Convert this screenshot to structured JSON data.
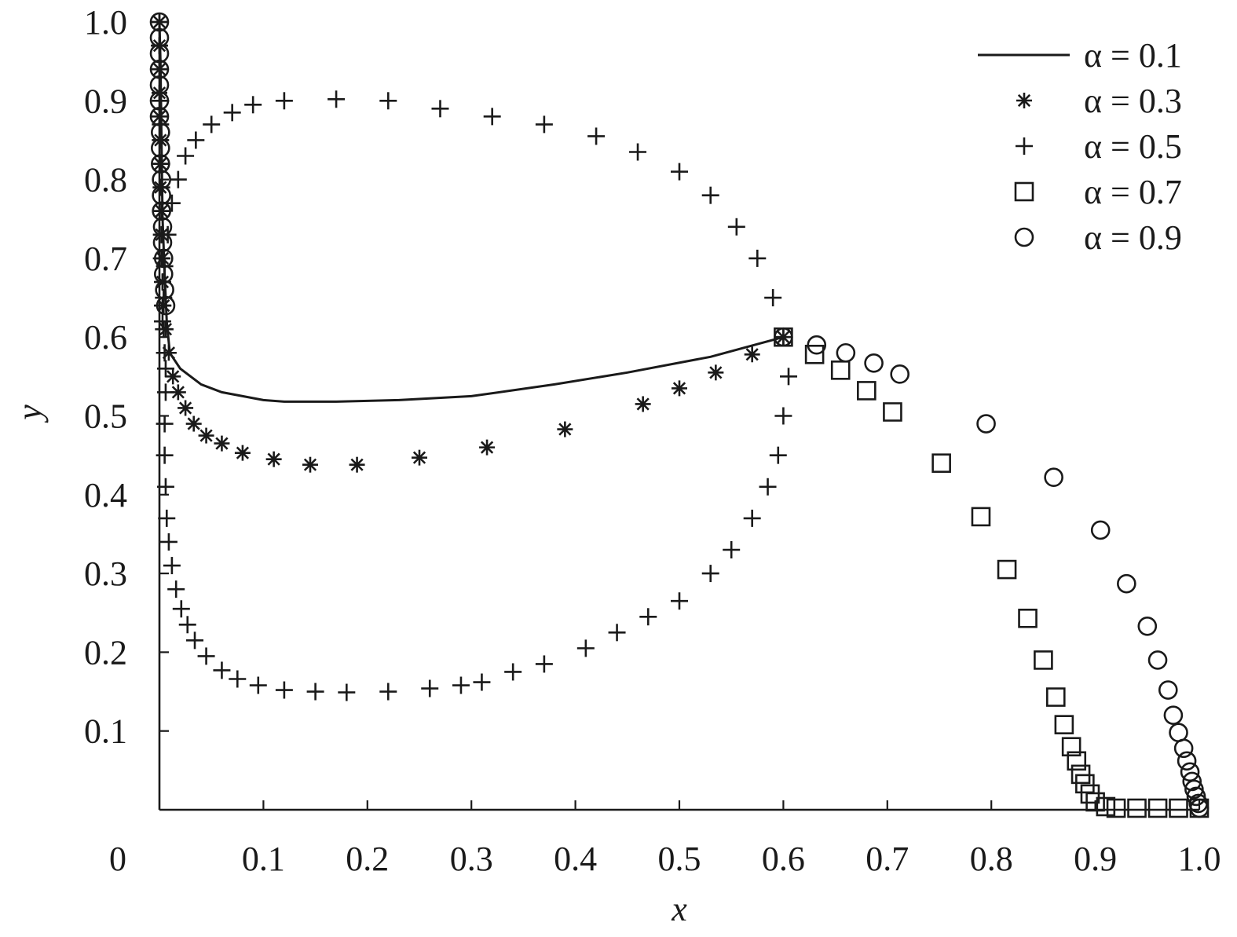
{
  "chart_data": {
    "type": "scatter",
    "title": "",
    "xlabel": "x",
    "ylabel": "y",
    "xlim": [
      0,
      1.0
    ],
    "ylim": [
      0,
      1.0
    ],
    "x_tick_labels": [
      "0",
      "0.1",
      "0.2",
      "0.3",
      "0.4",
      "0.5",
      "0.6",
      "0.7",
      "0.8",
      "0.9",
      "1.0"
    ],
    "y_tick_labels": [
      "0.1",
      "0.2",
      "0.3",
      "0.4",
      "0.5",
      "0.6",
      "0.7",
      "0.8",
      "0.9",
      "1.0"
    ],
    "grid": false,
    "legend_position": "top-right",
    "series": [
      {
        "name": "α = 0.1",
        "marker": "line",
        "points": [
          [
            0,
            1.0
          ],
          [
            0.001,
            0.95
          ],
          [
            0.002,
            0.85
          ],
          [
            0.003,
            0.75
          ],
          [
            0.005,
            0.68
          ],
          [
            0.007,
            0.62
          ],
          [
            0.01,
            0.58
          ],
          [
            0.02,
            0.56
          ],
          [
            0.04,
            0.54
          ],
          [
            0.06,
            0.53
          ],
          [
            0.08,
            0.525
          ],
          [
            0.1,
            0.52
          ],
          [
            0.12,
            0.518
          ],
          [
            0.17,
            0.518
          ],
          [
            0.23,
            0.52
          ],
          [
            0.3,
            0.525
          ],
          [
            0.38,
            0.54
          ],
          [
            0.45,
            0.555
          ],
          [
            0.53,
            0.575
          ],
          [
            0.6,
            0.6
          ]
        ]
      },
      {
        "name": "α = 0.3",
        "marker": "asterisk",
        "points": [
          [
            0,
            1.0
          ],
          [
            0,
            0.97
          ],
          [
            0,
            0.94
          ],
          [
            0,
            0.91
          ],
          [
            0,
            0.88
          ],
          [
            0.001,
            0.85
          ],
          [
            0.001,
            0.82
          ],
          [
            0.001,
            0.79
          ],
          [
            0.002,
            0.76
          ],
          [
            0.002,
            0.73
          ],
          [
            0.003,
            0.7
          ],
          [
            0.003,
            0.67
          ],
          [
            0.004,
            0.64
          ],
          [
            0.006,
            0.61
          ],
          [
            0.009,
            0.58
          ],
          [
            0.013,
            0.55
          ],
          [
            0.018,
            0.53
          ],
          [
            0.025,
            0.51
          ],
          [
            0.033,
            0.49
          ],
          [
            0.045,
            0.475
          ],
          [
            0.06,
            0.465
          ],
          [
            0.08,
            0.453
          ],
          [
            0.11,
            0.445
          ],
          [
            0.145,
            0.438
          ],
          [
            0.19,
            0.438
          ],
          [
            0.25,
            0.447
          ],
          [
            0.315,
            0.46
          ],
          [
            0.39,
            0.483
          ],
          [
            0.465,
            0.515
          ],
          [
            0.5,
            0.535
          ],
          [
            0.535,
            0.555
          ],
          [
            0.57,
            0.578
          ],
          [
            0.6,
            0.6
          ]
        ]
      },
      {
        "name": "α = 0.5",
        "marker": "plus",
        "points": [
          [
            0,
            1.0
          ],
          [
            0,
            0.97
          ],
          [
            0,
            0.94
          ],
          [
            0.001,
            0.9
          ],
          [
            0.001,
            0.87
          ],
          [
            0.001,
            0.85
          ],
          [
            0.002,
            0.82
          ],
          [
            0.002,
            0.79
          ],
          [
            0.002,
            0.76
          ],
          [
            0.002,
            0.73
          ],
          [
            0.002,
            0.7
          ],
          [
            0.003,
            0.67
          ],
          [
            0.003,
            0.64
          ],
          [
            0.004,
            0.61
          ],
          [
            0.005,
            0.58
          ],
          [
            0.006,
            0.56
          ],
          [
            0.006,
            0.53
          ],
          [
            0.005,
            0.49
          ],
          [
            0.005,
            0.45
          ],
          [
            0.006,
            0.41
          ],
          [
            0.007,
            0.37
          ],
          [
            0.009,
            0.34
          ],
          [
            0.012,
            0.31
          ],
          [
            0.016,
            0.28
          ],
          [
            0.021,
            0.255
          ],
          [
            0.027,
            0.235
          ],
          [
            0.034,
            0.215
          ],
          [
            0.045,
            0.195
          ],
          [
            0.06,
            0.177
          ],
          [
            0.075,
            0.166
          ],
          [
            0.095,
            0.158
          ],
          [
            0.12,
            0.152
          ],
          [
            0.15,
            0.15
          ],
          [
            0.18,
            0.149
          ],
          [
            0.22,
            0.15
          ],
          [
            0.26,
            0.154
          ],
          [
            0.29,
            0.158
          ],
          [
            0.31,
            0.162
          ],
          [
            0.34,
            0.175
          ],
          [
            0.37,
            0.185
          ],
          [
            0.41,
            0.205
          ],
          [
            0.44,
            0.225
          ],
          [
            0.47,
            0.245
          ],
          [
            0.5,
            0.265
          ],
          [
            0.53,
            0.3
          ],
          [
            0.55,
            0.33
          ],
          [
            0.57,
            0.37
          ],
          [
            0.585,
            0.41
          ],
          [
            0.595,
            0.45
          ],
          [
            0.6,
            0.5
          ],
          [
            0.605,
            0.55
          ],
          [
            0.6,
            0.6
          ],
          [
            0.59,
            0.65
          ],
          [
            0.575,
            0.7
          ],
          [
            0.555,
            0.74
          ],
          [
            0.53,
            0.78
          ],
          [
            0.5,
            0.81
          ],
          [
            0.46,
            0.835
          ],
          [
            0.42,
            0.855
          ],
          [
            0.37,
            0.87
          ],
          [
            0.32,
            0.88
          ],
          [
            0.27,
            0.89
          ],
          [
            0.22,
            0.9
          ],
          [
            0.17,
            0.902
          ],
          [
            0.12,
            0.9
          ],
          [
            0.09,
            0.895
          ],
          [
            0.07,
            0.885
          ],
          [
            0.05,
            0.87
          ],
          [
            0.035,
            0.85
          ],
          [
            0.025,
            0.83
          ],
          [
            0.018,
            0.8
          ],
          [
            0.012,
            0.77
          ],
          [
            0.008,
            0.73
          ],
          [
            0.005,
            0.69
          ],
          [
            0.004,
            0.65
          ],
          [
            0.003,
            0.62
          ]
        ]
      },
      {
        "name": "α = 0.7",
        "marker": "square",
        "points": [
          [
            0.6,
            0.6
          ],
          [
            0.63,
            0.578
          ],
          [
            0.655,
            0.558
          ],
          [
            0.68,
            0.532
          ],
          [
            0.705,
            0.505
          ],
          [
            0.752,
            0.44
          ],
          [
            0.79,
            0.372
          ],
          [
            0.815,
            0.305
          ],
          [
            0.835,
            0.243
          ],
          [
            0.85,
            0.19
          ],
          [
            0.862,
            0.143
          ],
          [
            0.87,
            0.108
          ],
          [
            0.877,
            0.08
          ],
          [
            0.882,
            0.062
          ],
          [
            0.886,
            0.045
          ],
          [
            0.89,
            0.033
          ],
          [
            0.895,
            0.02
          ],
          [
            0.9,
            0.01
          ],
          [
            0.91,
            0.004
          ],
          [
            0.92,
            0.002
          ],
          [
            0.94,
            0.002
          ],
          [
            0.96,
            0.002
          ],
          [
            0.98,
            0.002
          ],
          [
            1.0,
            0.002
          ]
        ]
      },
      {
        "name": "α = 0.9",
        "marker": "circle",
        "points": [
          [
            0,
            1.0
          ],
          [
            0,
            0.98
          ],
          [
            0,
            0.96
          ],
          [
            0,
            0.94
          ],
          [
            0,
            0.92
          ],
          [
            0,
            0.9
          ],
          [
            0,
            0.88
          ],
          [
            0.001,
            0.86
          ],
          [
            0.001,
            0.84
          ],
          [
            0.001,
            0.82
          ],
          [
            0.002,
            0.8
          ],
          [
            0.002,
            0.78
          ],
          [
            0.002,
            0.76
          ],
          [
            0.003,
            0.74
          ],
          [
            0.003,
            0.72
          ],
          [
            0.004,
            0.7
          ],
          [
            0.004,
            0.68
          ],
          [
            0.005,
            0.66
          ],
          [
            0.006,
            0.64
          ],
          [
            0.6,
            0.6
          ],
          [
            0.632,
            0.59
          ],
          [
            0.66,
            0.58
          ],
          [
            0.687,
            0.567
          ],
          [
            0.712,
            0.553
          ],
          [
            0.795,
            0.49
          ],
          [
            0.86,
            0.422
          ],
          [
            0.905,
            0.355
          ],
          [
            0.93,
            0.287
          ],
          [
            0.95,
            0.233
          ],
          [
            0.96,
            0.19
          ],
          [
            0.97,
            0.152
          ],
          [
            0.975,
            0.12
          ],
          [
            0.98,
            0.098
          ],
          [
            0.985,
            0.078
          ],
          [
            0.988,
            0.062
          ],
          [
            0.991,
            0.048
          ],
          [
            0.993,
            0.036
          ],
          [
            0.995,
            0.026
          ],
          [
            0.997,
            0.017
          ],
          [
            0.999,
            0.008
          ],
          [
            1.0,
            0.002
          ]
        ]
      }
    ]
  }
}
